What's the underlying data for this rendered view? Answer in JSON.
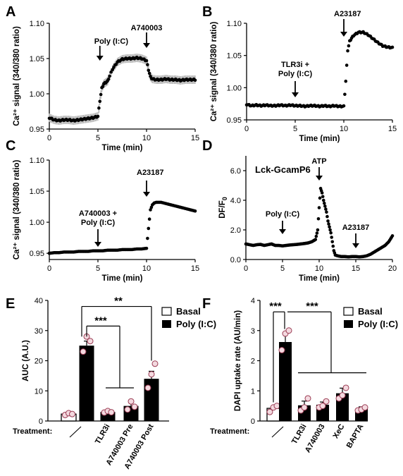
{
  "chart_data": [
    {
      "panel": "A",
      "type": "scatter",
      "xlabel": "Time (min)",
      "ylabel": "Ca²⁺ signal (340/380 ratio)",
      "xlim": [
        0,
        15
      ],
      "ylim": [
        0.95,
        1.1
      ],
      "xticks": [
        0,
        5,
        10,
        15
      ],
      "yticks": [
        0.95,
        1.0,
        1.05,
        1.1
      ],
      "series": [
        {
          "x": [
            0.0,
            0.5,
            1.0,
            1.5,
            2.0,
            2.5,
            3.0,
            3.5,
            4.0,
            4.5,
            5.0,
            5.2,
            5.4,
            5.6,
            5.8,
            6.0,
            6.2,
            6.5,
            7.0,
            7.5,
            8.0,
            8.5,
            9.0,
            9.5,
            10.0,
            10.2,
            10.4,
            10.6,
            11.0,
            11.5,
            12.0,
            12.5,
            13.0,
            13.5,
            14.0,
            14.5,
            15.0
          ],
          "y": [
            0.966,
            0.963,
            0.962,
            0.963,
            0.963,
            0.962,
            0.963,
            0.964,
            0.965,
            0.966,
            0.968,
            0.99,
            1.008,
            1.014,
            1.016,
            1.018,
            1.025,
            1.035,
            1.045,
            1.049,
            1.05,
            1.05,
            1.051,
            1.05,
            1.047,
            1.034,
            1.024,
            1.021,
            1.02,
            1.02,
            1.021,
            1.02,
            1.02,
            1.019,
            1.02,
            1.02,
            1.02
          ],
          "error": 0.006
        }
      ],
      "annotations": [
        {
          "text": "Poly (I:C)",
          "x": 5.2
        },
        {
          "text": "A740003",
          "x": 10.0
        }
      ]
    },
    {
      "panel": "B",
      "type": "scatter",
      "xlabel": "Time (min)",
      "ylabel": "Ca²⁺ signal (340/380 ratio)",
      "xlim": [
        0,
        15
      ],
      "ylim": [
        0.95,
        1.1
      ],
      "xticks": [
        0,
        5,
        10,
        15
      ],
      "yticks": [
        0.95,
        1.0,
        1.05,
        1.1
      ],
      "series": [
        {
          "x": [
            0.0,
            0.5,
            1.0,
            1.5,
            2.0,
            2.5,
            3.0,
            3.5,
            4.0,
            4.5,
            5.0,
            5.5,
            6.0,
            6.5,
            7.0,
            7.5,
            8.0,
            8.5,
            9.0,
            9.5,
            10.0,
            10.2,
            10.4,
            10.6,
            10.8,
            11.0,
            11.5,
            12.0,
            12.5,
            13.0,
            13.5,
            14.0,
            14.5,
            15.0
          ],
          "y": [
            0.974,
            0.972,
            0.973,
            0.972,
            0.973,
            0.972,
            0.972,
            0.973,
            0.972,
            0.973,
            0.972,
            0.972,
            0.971,
            0.972,
            0.972,
            0.971,
            0.972,
            0.971,
            0.972,
            0.971,
            0.971,
            1.01,
            1.058,
            1.072,
            1.077,
            1.081,
            1.086,
            1.086,
            1.082,
            1.076,
            1.07,
            1.065,
            1.063,
            1.062
          ]
        }
      ],
      "annotations": [
        {
          "text": "TLR3i +",
          "x": 5.0
        },
        {
          "text": "Poly (I:C)",
          "x": 5.0
        },
        {
          "text": "A23187",
          "x": 10.0
        }
      ]
    },
    {
      "panel": "C",
      "type": "scatter",
      "xlabel": "Time (min)",
      "ylabel": "Ca²⁺ signal (340/380 ratio)",
      "xlim": [
        0,
        15
      ],
      "ylim": [
        0.94,
        1.1
      ],
      "xticks": [
        0,
        5,
        10,
        15
      ],
      "yticks": [
        0.95,
        1.0,
        1.05,
        1.1
      ],
      "series": [
        {
          "x": [
            0.0,
            0.5,
            1.0,
            1.5,
            2.0,
            2.5,
            3.0,
            3.5,
            4.0,
            4.5,
            5.0,
            5.5,
            6.0,
            6.5,
            7.0,
            7.5,
            8.0,
            8.5,
            9.0,
            9.5,
            10.0,
            10.2,
            10.4,
            10.6,
            10.8,
            11.0,
            11.5,
            12.0,
            12.5,
            13.0,
            13.5,
            14.0,
            14.5,
            15.0
          ],
          "y": [
            0.95,
            0.951,
            0.951,
            0.952,
            0.952,
            0.952,
            0.953,
            0.953,
            0.953,
            0.954,
            0.954,
            0.954,
            0.955,
            0.955,
            0.955,
            0.956,
            0.956,
            0.956,
            0.957,
            0.957,
            0.958,
            0.99,
            1.02,
            1.028,
            1.031,
            1.032,
            1.032,
            1.03,
            1.028,
            1.026,
            1.024,
            1.022,
            1.02,
            1.018
          ]
        }
      ],
      "annotations": [
        {
          "text": "A740003 +",
          "x": 5.0
        },
        {
          "text": "Poly (I:C)",
          "x": 5.0
        },
        {
          "text": "A23187",
          "x": 10.0
        }
      ]
    },
    {
      "panel": "D",
      "type": "scatter",
      "title": "Lck-GcamP6",
      "xlabel": "Time (min)",
      "ylabel": "DF/F0",
      "xlim": [
        0,
        20
      ],
      "ylim": [
        0,
        7
      ],
      "xticks": [
        0,
        5,
        10,
        15,
        20
      ],
      "yticks": [
        0.0,
        2.0,
        4.0,
        6.0
      ],
      "series": [
        {
          "x": [
            0.0,
            0.5,
            1.0,
            1.5,
            2.0,
            2.5,
            3.0,
            3.5,
            4.0,
            4.5,
            5.0,
            5.5,
            6.0,
            6.5,
            7.0,
            7.5,
            8.0,
            8.5,
            9.0,
            9.5,
            9.8,
            10.0,
            10.2,
            10.4,
            10.6,
            10.8,
            11.0,
            11.2,
            11.4,
            11.6,
            11.8,
            12.0,
            12.2,
            12.5,
            13.0,
            13.5,
            14.0,
            14.5,
            15.0,
            15.5,
            16.0,
            16.5,
            17.0,
            17.5,
            18.0,
            18.5,
            19.0,
            19.5,
            20.0
          ],
          "y": [
            1.05,
            1.0,
            0.95,
            1.0,
            1.02,
            0.95,
            1.0,
            1.05,
            0.95,
            0.95,
            0.92,
            0.95,
            0.98,
            1.0,
            1.02,
            1.05,
            1.08,
            1.12,
            1.2,
            1.35,
            2.0,
            3.5,
            4.8,
            4.5,
            4.0,
            3.6,
            3.2,
            2.6,
            2.2,
            1.8,
            1.2,
            0.6,
            0.3,
            0.25,
            0.2,
            0.2,
            0.18,
            0.2,
            0.2,
            0.18,
            0.2,
            0.25,
            0.35,
            0.5,
            0.65,
            0.8,
            0.95,
            1.2,
            1.6
          ]
        }
      ],
      "annotations": [
        {
          "text": "Poly (I:C)",
          "x": 5.0
        },
        {
          "text": "ATP",
          "x": 10.0
        },
        {
          "text": "A23187",
          "x": 15.0
        }
      ]
    },
    {
      "panel": "E",
      "type": "bar",
      "ylabel": "AUC (A.U.)",
      "treatment_label": "Treatment:",
      "ylim": [
        0,
        40
      ],
      "yticks": [
        0,
        10,
        20,
        30,
        40
      ],
      "categories": [
        "——",
        "TLR3i",
        "A740003 Pre",
        "A740003 Post"
      ],
      "basal": {
        "value": 2.3,
        "error": 0.5,
        "points": [
          2.0,
          2.6,
          2.3
        ]
      },
      "series": [
        {
          "name": "Poly (I:C)",
          "values": [
            25.0,
            3.0,
            5.0,
            14.0
          ],
          "errors": [
            1.5,
            0.4,
            1.2,
            2.5
          ]
        }
      ],
      "points": [
        [
          23.0,
          28.0,
          26.5
        ],
        [
          2.8,
          3.3,
          2.9
        ],
        [
          3.8,
          6.5,
          4.7
        ],
        [
          11.0,
          15.5,
          19.0
        ]
      ],
      "legend": [
        "Basal",
        "Poly (I:C)"
      ],
      "significance": [
        "***",
        "**"
      ]
    },
    {
      "panel": "F",
      "type": "bar",
      "ylabel": "DAPI uptake rate (AU/min)",
      "treatment_label": "Treatment:",
      "ylim": [
        0,
        4
      ],
      "yticks": [
        0,
        1,
        2,
        3,
        4
      ],
      "categories": [
        "——",
        "TLR3i",
        "A740003",
        "XeC",
        "BAPTA"
      ],
      "basal": {
        "value": 0.42,
        "error": 0.1,
        "points": [
          0.3,
          0.45,
          0.5
        ]
      },
      "series": [
        {
          "name": "Poly (I:C)",
          "values": [
            2.62,
            0.52,
            0.54,
            0.92,
            0.4
          ],
          "errors": [
            0.28,
            0.14,
            0.09,
            0.17,
            0.07
          ]
        }
      ],
      "points": [
        [
          2.35,
          2.9,
          3.0
        ],
        [
          0.35,
          0.45,
          0.75
        ],
        [
          0.45,
          0.5,
          0.65
        ],
        [
          0.75,
          0.85,
          1.1
        ],
        [
          0.35,
          0.38,
          0.45
        ]
      ],
      "legend": [
        "Basal",
        "Poly (I:C)"
      ],
      "significance": [
        "***",
        "***"
      ]
    }
  ]
}
